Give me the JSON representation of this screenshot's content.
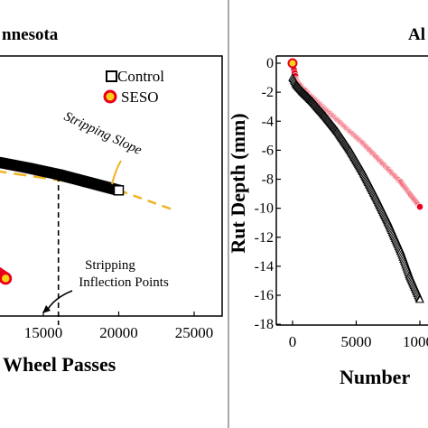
{
  "chart_data": [
    {
      "type": "scatter",
      "title": "nnesota",
      "xlabel": "Wheel Passes",
      "ylabel": "",
      "xlim": [
        0,
        25000
      ],
      "ylim": [
        -18,
        0
      ],
      "x_ticks": [
        "15000",
        "20000",
        "25000"
      ],
      "legend": {
        "placement": "top-right",
        "entries": [
          "Control",
          "SESO"
        ]
      },
      "series": [
        {
          "name": "Control",
          "color": "#000000",
          "marker": "square-open",
          "x": [
            0,
            2000,
            4000,
            6000,
            8000,
            10000,
            12000,
            14000,
            16000,
            18000,
            20000
          ],
          "y": [
            -6.3,
            -6.35,
            -6.45,
            -6.6,
            -6.8,
            -7.05,
            -7.35,
            -7.75,
            -8.2,
            -8.75,
            -9.3
          ]
        },
        {
          "name": "SESO",
          "color": "#e8001c",
          "marker": "circle-yellow",
          "x": [
            8500,
            9000,
            9500,
            10000,
            10500,
            11000,
            11500,
            12000,
            12500
          ],
          "y": [
            -12.6,
            -12.95,
            -13.3,
            -13.65,
            -14.0,
            -14.35,
            -14.7,
            -15.05,
            -15.4
          ]
        }
      ],
      "fit_lines": [
        {
          "x": [
            0,
            20000
          ],
          "y": [
            -6.15,
            -9.2
          ]
        },
        {
          "x": [
            20000,
            23500
          ],
          "y": [
            -9.3,
            -10.6
          ]
        }
      ],
      "reference_line_x": 16000,
      "annotations": [
        "Stripping Slope",
        "Stripping",
        "Inflection Points"
      ]
    },
    {
      "type": "scatter",
      "title": "Al",
      "xlabel": "Number",
      "ylabel": "Rut Depth (mm)",
      "xlim": [
        0,
        10000
      ],
      "ylim": [
        -18,
        0
      ],
      "x_ticks": [
        "0",
        "5000",
        "1000"
      ],
      "y_ticks": [
        "0",
        "-2",
        "-4",
        "-6",
        "-8",
        "-10",
        "-12",
        "-14",
        "-16",
        "-18"
      ],
      "series": [
        {
          "name": "Control",
          "color": "#000000",
          "marker": "triangle-open",
          "x": [
            0,
            300,
            800,
            1500,
            2500,
            3500,
            4500,
            5500,
            6500,
            7500,
            8500,
            9200,
            10000
          ],
          "y": [
            -1.0,
            -1.5,
            -2.0,
            -2.6,
            -3.6,
            -4.7,
            -6.0,
            -7.5,
            -9.2,
            -11.0,
            -13.0,
            -14.7,
            -16.3
          ]
        },
        {
          "name": "SESO",
          "color": "#e8001c",
          "marker": "circle-filled",
          "x": [
            0,
            300,
            800,
            1500,
            2500,
            3500,
            4500,
            5500,
            6500,
            7500,
            8500,
            9200,
            10000
          ],
          "y": [
            0,
            -1.2,
            -1.7,
            -2.3,
            -3.1,
            -3.9,
            -4.7,
            -5.5,
            -6.4,
            -7.3,
            -8.2,
            -9.0,
            -9.9
          ]
        }
      ]
    }
  ]
}
